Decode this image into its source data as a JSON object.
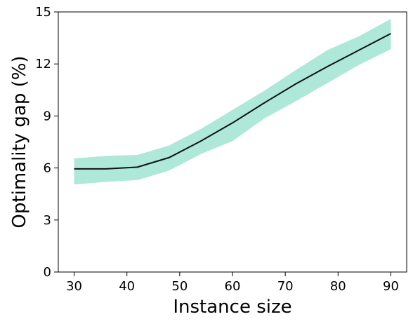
{
  "chart_data": {
    "type": "line",
    "title": "",
    "xlabel": "Instance size",
    "ylabel": "Optimality gap (%)",
    "xlim": [
      27,
      93
    ],
    "ylim": [
      0,
      15
    ],
    "x_ticks": [
      30,
      40,
      50,
      60,
      70,
      80,
      90
    ],
    "y_ticks": [
      0,
      3,
      6,
      9,
      12,
      15
    ],
    "grid": false,
    "legend": "none",
    "x": [
      30,
      36,
      42,
      48,
      54,
      60,
      66,
      72,
      78,
      84,
      90
    ],
    "series": [
      {
        "values": [
          5.95,
          5.95,
          6.05,
          6.6,
          7.55,
          8.6,
          9.75,
          10.85,
          11.85,
          12.8,
          13.75
        ],
        "lower": [
          5.05,
          5.2,
          5.3,
          5.85,
          6.8,
          7.55,
          8.85,
          9.85,
          10.9,
          11.95,
          12.85
        ],
        "upper": [
          6.55,
          6.7,
          6.75,
          7.3,
          8.25,
          9.35,
          10.45,
          11.65,
          12.8,
          13.6,
          14.6
        ],
        "color": "#111111",
        "band_color": "#ade8d8"
      }
    ]
  }
}
